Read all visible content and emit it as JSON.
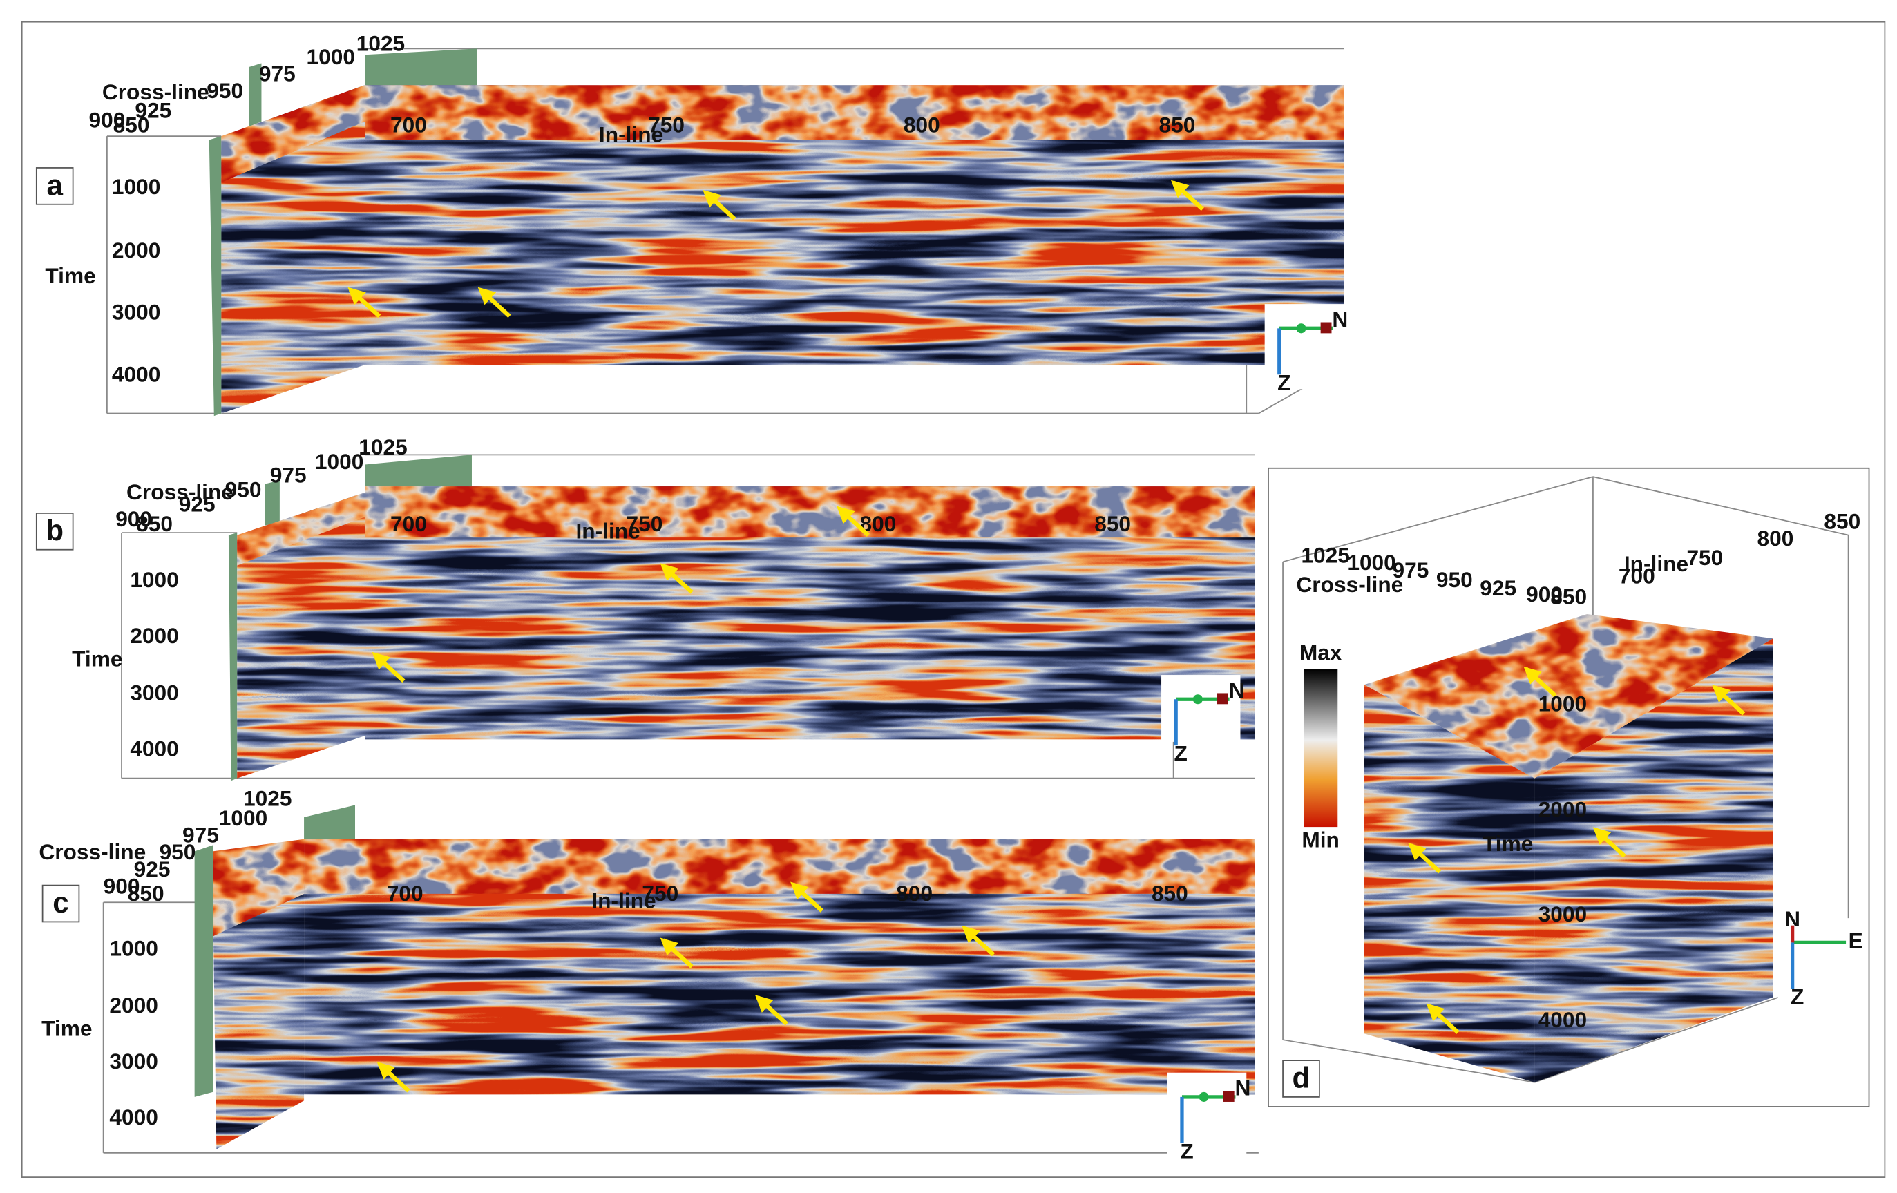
{
  "panels": [
    {
      "label": "a",
      "cross_line": {
        "title": "Cross-line",
        "ticks": [
          850,
          900,
          925,
          950,
          975,
          1000,
          1025
        ]
      },
      "in_line": {
        "title": "In-line",
        "ticks": [
          700,
          750,
          800,
          850
        ]
      },
      "time": {
        "title": "Time",
        "ticks": [
          1000,
          2000,
          3000,
          4000
        ]
      },
      "compass": [
        "N",
        "Z"
      ]
    },
    {
      "label": "b",
      "cross_line": {
        "title": "Cross-line",
        "ticks": [
          850,
          900,
          925,
          950,
          975,
          1000,
          1025
        ]
      },
      "in_line": {
        "title": "In-line",
        "ticks": [
          700,
          750,
          800,
          850
        ]
      },
      "time": {
        "title": "Time",
        "ticks": [
          1000,
          2000,
          3000,
          4000
        ]
      },
      "compass": [
        "N",
        "Z"
      ]
    },
    {
      "label": "c",
      "cross_line": {
        "title": "Cross-line",
        "ticks": [
          850,
          900,
          925,
          950,
          975,
          1000,
          1025
        ]
      },
      "in_line": {
        "title": "In-line",
        "ticks": [
          700,
          750,
          800,
          850
        ]
      },
      "time": {
        "title": "Time",
        "ticks": [
          1000,
          2000,
          3000,
          4000
        ]
      },
      "compass": [
        "N",
        "Z"
      ]
    },
    {
      "label": "d",
      "cross_line": {
        "title": "Cross-line",
        "ticks": [
          850,
          900,
          925,
          950,
          975,
          1000,
          1025
        ]
      },
      "in_line": {
        "title": "In-line",
        "ticks": [
          700,
          750,
          800,
          850
        ]
      },
      "time": {
        "title": "Time",
        "ticks": [
          1000,
          2000,
          3000,
          4000
        ]
      },
      "colorbar": {
        "max": "Max",
        "min": "Min"
      },
      "compass": [
        "N",
        "E",
        "Z"
      ]
    }
  ]
}
